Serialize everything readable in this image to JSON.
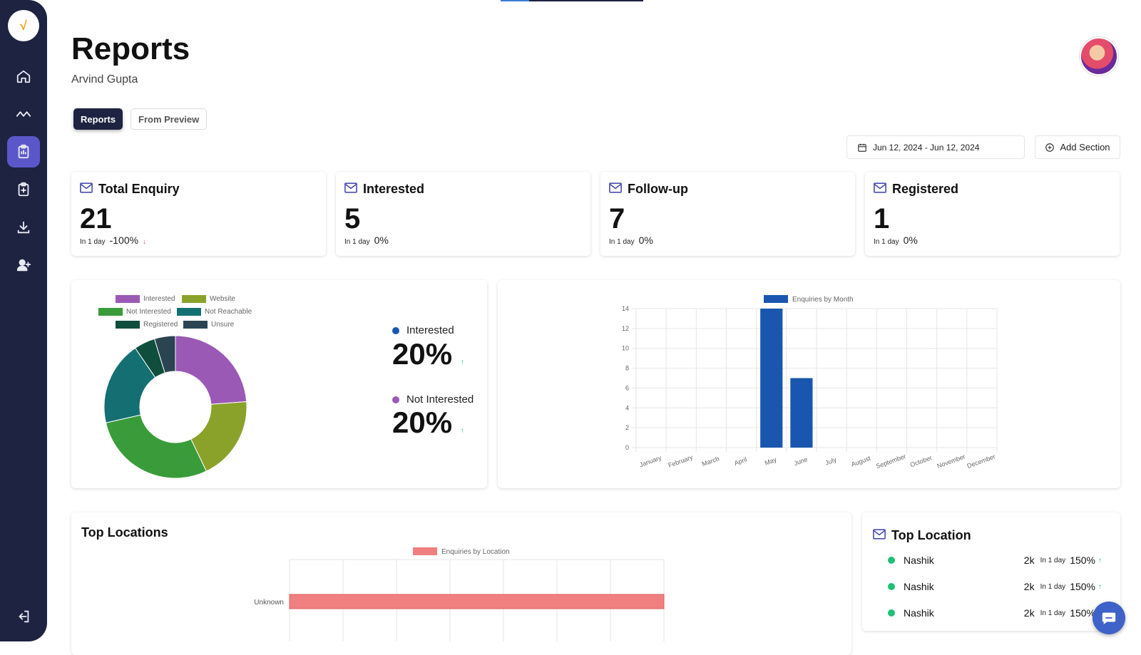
{
  "page": {
    "title": "Reports",
    "user_name": "Arvind Gupta"
  },
  "sidebar": {
    "logo": "√",
    "items": [
      {
        "icon": "home-icon"
      },
      {
        "icon": "activity-icon"
      },
      {
        "icon": "clipboard-icon",
        "active": true
      },
      {
        "icon": "clipboard-plus-icon"
      },
      {
        "icon": "download-icon"
      },
      {
        "icon": "user-plus-icon"
      }
    ],
    "logout_icon": "logout-icon"
  },
  "tabs": [
    {
      "label": "Reports",
      "active": true
    },
    {
      "label": "From Preview",
      "active": false
    }
  ],
  "toolbar": {
    "date_range": "Jun 12, 2024 - Jun 12, 2024",
    "add_section": "Add Section"
  },
  "stats": [
    {
      "title": "Total Enquiry",
      "value": "21",
      "period": "In 1 day",
      "change": "-100%",
      "trend": "down"
    },
    {
      "title": "Interested",
      "value": "5",
      "period": "In 1 day",
      "change": "0%",
      "trend": "none"
    },
    {
      "title": "Follow-up",
      "value": "7",
      "period": "In 1 day",
      "change": "0%",
      "trend": "none"
    },
    {
      "title": "Registered",
      "value": "1",
      "period": "In 1 day",
      "change": "0%",
      "trend": "none"
    }
  ],
  "kpis": [
    {
      "label": "Interested",
      "value": "20%",
      "color": "#1a56b0",
      "trend": "up"
    },
    {
      "label": "Not Interested",
      "value": "20%",
      "color": "#9b59b6",
      "trend": "up"
    }
  ],
  "top_locations": {
    "title": "Top Locations"
  },
  "top_location_card": {
    "title": "Top Location",
    "rows": [
      {
        "name": "Nashik",
        "value": "2k",
        "period": "In 1 day",
        "change": "150%"
      },
      {
        "name": "Nashik",
        "value": "2k",
        "period": "In 1 day",
        "change": "150%"
      },
      {
        "name": "Nashik",
        "value": "2k",
        "period": "In 1 day",
        "change": "150%"
      }
    ]
  },
  "chart_data": [
    {
      "type": "pie",
      "variant": "doughnut",
      "legend": [
        "Interested",
        "Website",
        "Not Interested",
        "Not Reachable",
        "Registered",
        "Unsure"
      ],
      "categories": [
        "Interested",
        "Website",
        "Not Interested",
        "Not Reachable",
        "Registered",
        "Unsure"
      ],
      "values": [
        5,
        4,
        6,
        4,
        1,
        1
      ],
      "colors": [
        "#9b59b6",
        "#8aa22a",
        "#3a9b3a",
        "#136f72",
        "#0f4d3c",
        "#2b4452"
      ],
      "legend_position": "top"
    },
    {
      "type": "bar",
      "series": [
        {
          "name": "Enquiries by Month",
          "values": [
            0,
            0,
            0,
            0,
            14,
            7,
            0,
            0,
            0,
            0,
            0,
            0
          ],
          "color": "#1a56b0"
        }
      ],
      "categories": [
        "January",
        "February",
        "March",
        "April",
        "May",
        "June",
        "July",
        "August",
        "September",
        "October",
        "November",
        "December"
      ],
      "ylim": [
        0,
        14
      ],
      "yticks": [
        0,
        2,
        4,
        6,
        8,
        10,
        12,
        14
      ],
      "grid": true,
      "legend_position": "top"
    },
    {
      "type": "bar",
      "orientation": "horizontal",
      "series": [
        {
          "name": "Enquiries by Location",
          "values": [
            1
          ],
          "color": "#f07f7f"
        }
      ],
      "categories": [
        "Unknown"
      ],
      "xlim": [
        0,
        1
      ],
      "grid": true,
      "legend_position": "top"
    }
  ]
}
